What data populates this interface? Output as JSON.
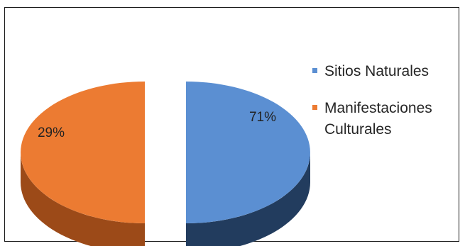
{
  "chart_data": {
    "type": "pie",
    "categories": [
      "Sitios Naturales",
      "Manifestaciones Culturales"
    ],
    "values": [
      71,
      29
    ],
    "data_labels": [
      "71%",
      "29%"
    ],
    "colors": [
      "#5b8fd2",
      "#ec7b32"
    ],
    "side_colors": [
      "#223c5e",
      "#9c4a18"
    ],
    "legend": {
      "placement": "right",
      "items": [
        {
          "label": "Sitios Naturales",
          "color": "#5b8fd2"
        },
        {
          "label": "Manifestaciones Culturales",
          "color": "#ec7b32"
        }
      ]
    },
    "title": "",
    "style": "3d-exploded"
  }
}
